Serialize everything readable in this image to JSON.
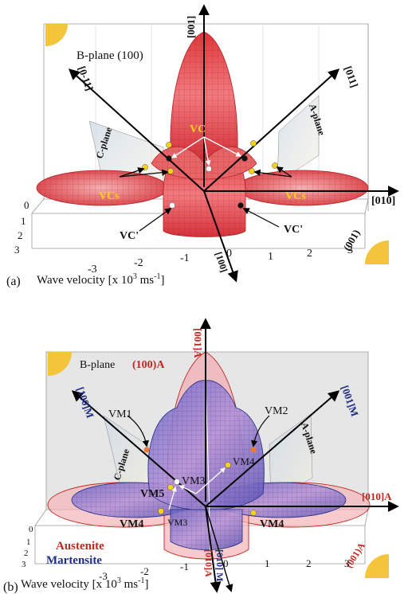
{
  "panel_a": {
    "panel_label": "(a)",
    "x_axis_label": "Wave velocity [x 10",
    "x_axis_exp": "3",
    "x_axis_unit": " ms",
    "x_axis_unit_exp": "-1",
    "x_axis_end": "]",
    "plane_b": "B-plane (100)",
    "plane_c": "C-plane",
    "plane_a": "A-plane",
    "dir_001": "[001]",
    "dir_0m11": "[0-11]",
    "dir_011": "[011]",
    "dir_010": "[010]",
    "dir_100": "[100]",
    "face_001": "(001)",
    "vc_label": "VC",
    "vcs_left": "VCs",
    "vcs_right": "VCs",
    "vcp_left": "VC'",
    "vcp_right": "VC'",
    "x_ticks": [
      "-3",
      "-2",
      "-1",
      "0",
      "1",
      "2",
      "3"
    ],
    "depth_ticks": [
      "0",
      "1",
      "2",
      "3"
    ]
  },
  "panel_b": {
    "panel_label": "(b)",
    "x_axis_label": "Wave velocity [x 10",
    "x_axis_exp": "3",
    "x_axis_unit": " ms",
    "x_axis_unit_exp": "-1",
    "x_axis_end": "]",
    "plane_b": "B-plane",
    "plane_b_red": "(100)A",
    "plane_c": "C-plane",
    "plane_a": "A-plane",
    "dir_001A": "[001]A",
    "dir_100M": "[100]M",
    "dir_001M": "[001]M",
    "dir_010A_right": "[010]A",
    "dir_010A_bottom": "[010]A",
    "dir_010M": "[010] M",
    "face_001A": "(001)A",
    "vm1": "VM1",
    "vm2": "VM2",
    "vm3a": "VM3",
    "vm3b": "VM3",
    "vm4a": "VM4",
    "vm4b": "VM4",
    "vm4c": "VM4",
    "vm5": "VM5",
    "legend_austenite": "Austenite",
    "legend_martensite": "Martensite",
    "x_ticks": [
      "-3",
      "-2",
      "-1",
      "0",
      "1",
      "2",
      "3"
    ],
    "depth_ticks": [
      "0",
      "1",
      "2",
      "3"
    ]
  },
  "colors": {
    "austenite": "#c0281f",
    "martensite": "#1e2c86",
    "marker_yellow": "#f7d21c",
    "marker_orange": "#ee7a32"
  }
}
